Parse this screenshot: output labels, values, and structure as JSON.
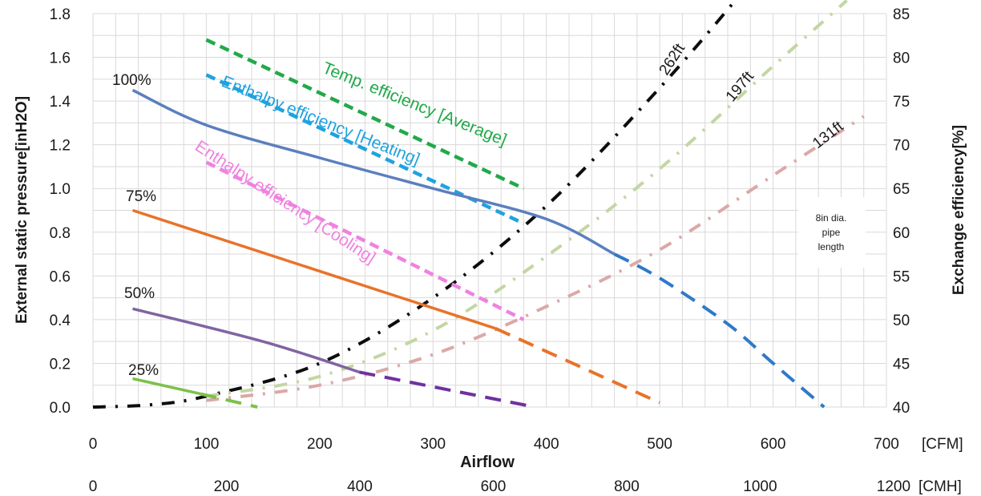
{
  "chart_data": {
    "type": "line",
    "xlabel": "Airflow",
    "x_unit_primary": "[CFM]",
    "x_unit_secondary": "[CMH]",
    "ylabel_left": "External static pressure[inH2O]",
    "ylabel_right": "Exchange efficiency[%]",
    "xlim": [
      0,
      700
    ],
    "ylim_left": [
      0,
      1.8
    ],
    "ylim_right": [
      40,
      85
    ],
    "x_ticks": [
      "0",
      "100",
      "200",
      "300",
      "400",
      "500",
      "600",
      "700"
    ],
    "x_secondary_ticks": [
      "0",
      "200",
      "400",
      "600",
      "800",
      "1000",
      "1200"
    ],
    "y_left_ticks": [
      "0.0",
      "0.2",
      "0.4",
      "0.6",
      "0.8",
      "1.0",
      "1.2",
      "1.4",
      "1.6",
      "1.8"
    ],
    "y_right_ticks": [
      "40",
      "45",
      "50",
      "55",
      "60",
      "65",
      "70",
      "75",
      "80",
      "85"
    ],
    "grid": true,
    "note": [
      "8in dia.",
      "pipe",
      "length"
    ],
    "fan_curves": [
      {
        "name": "100%",
        "color": "#5b7fbf",
        "solid": [
          [
            35,
            1.45
          ],
          [
            100,
            1.29
          ],
          [
            200,
            1.14
          ],
          [
            300,
            1.0
          ],
          [
            400,
            0.86
          ],
          [
            460,
            0.7
          ]
        ],
        "dashed_color": "#2f79c9",
        "dashed": [
          [
            460,
            0.7
          ],
          [
            500,
            0.59
          ],
          [
            560,
            0.38
          ],
          [
            600,
            0.2
          ],
          [
            645,
            0.0
          ]
        ]
      },
      {
        "name": "75%",
        "color": "#e8732a",
        "solid": [
          [
            35,
            0.9
          ],
          [
            355,
            0.36
          ]
        ],
        "dashed": [
          [
            355,
            0.36
          ],
          [
            500,
            0.02
          ]
        ]
      },
      {
        "name": "50%",
        "color": "#8064a2",
        "solid": [
          [
            35,
            0.45
          ],
          [
            150,
            0.3
          ],
          [
            235,
            0.16
          ]
        ],
        "dashed_color": "#7030a0",
        "dashed": [
          [
            235,
            0.16
          ],
          [
            390,
            0.0
          ]
        ]
      },
      {
        "name": "25%",
        "color": "#7cc14a",
        "solid": [
          [
            35,
            0.13
          ],
          [
            95,
            0.06
          ]
        ],
        "dashed": [
          [
            95,
            0.06
          ],
          [
            145,
            0.0
          ]
        ]
      }
    ],
    "efficiency_curves": [
      {
        "name": "Temp. efficiency [Average]",
        "color": "#22a94a",
        "points": [
          [
            100,
            82
          ],
          [
            380,
            65
          ]
        ]
      },
      {
        "name": "Enthalpy efficiency [Heating]",
        "color": "#1fa2e0",
        "points": [
          [
            100,
            78
          ],
          [
            380,
            61
          ]
        ]
      },
      {
        "name": "Enthalpy efficiency [Cooling]",
        "color": "#ef82e0",
        "points": [
          [
            100,
            68
          ],
          [
            380,
            50
          ]
        ]
      }
    ],
    "pipe_curves": [
      {
        "name": "262ft",
        "color": "#0d0d0d",
        "points": [
          [
            0,
            0.0
          ],
          [
            50,
            0.01
          ],
          [
            100,
            0.05
          ],
          [
            200,
            0.2
          ],
          [
            300,
            0.5
          ],
          [
            400,
            0.92
          ],
          [
            500,
            1.46
          ],
          [
            570,
            1.88
          ]
        ]
      },
      {
        "name": "197ft",
        "color": "#c3d6a3",
        "points": [
          [
            100,
            0.05
          ],
          [
            200,
            0.14
          ],
          [
            300,
            0.35
          ],
          [
            400,
            0.69
          ],
          [
            500,
            1.09
          ],
          [
            600,
            1.56
          ],
          [
            665,
            1.86
          ]
        ]
      },
      {
        "name": "131ft",
        "color": "#dba8a8",
        "points": [
          [
            100,
            0.03
          ],
          [
            200,
            0.1
          ],
          [
            300,
            0.24
          ],
          [
            400,
            0.46
          ],
          [
            500,
            0.72
          ],
          [
            600,
            1.06
          ],
          [
            680,
            1.33
          ]
        ]
      }
    ],
    "curve_labels": {
      "fan": [
        "100%",
        "75%",
        "50%",
        "25%"
      ],
      "efficiency": [
        "Temp. efficiency [Average]",
        "Enthalpy efficiency [Heating]",
        "Enthalpy efficiency [Cooling]"
      ],
      "pipe": [
        "262ft",
        "197ft",
        "131ft"
      ]
    }
  }
}
